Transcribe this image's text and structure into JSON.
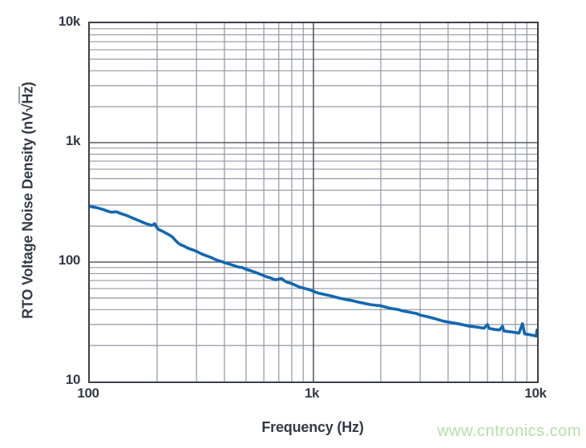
{
  "watermark": "www.cntronics.com",
  "colors": {
    "frame": "#3a4048",
    "grid_minor": "#9096a0",
    "grid_major": "#565c64",
    "text": "#333a46",
    "curve": "#1267b1",
    "watermark": "#b4dfa6"
  },
  "chart_data": {
    "type": "line",
    "title": "",
    "xlabel": "Frequency (Hz)",
    "ylabel": "RTO Voltage Noise Density (nV√Hz)",
    "ylabel_parts": {
      "prefix": "RTO Voltage Noise Density (nV",
      "radical": "√",
      "radicand": "Hz",
      "suffix": ")"
    },
    "x_scale": "log",
    "y_scale": "log",
    "xlim": [
      100,
      10000
    ],
    "ylim": [
      10,
      10000
    ],
    "grid": "log major + minor, full frame",
    "legend": "none",
    "x_ticks": [
      {
        "value": 100,
        "label": "100"
      },
      {
        "value": 1000,
        "label": "1k"
      },
      {
        "value": 10000,
        "label": "10k"
      }
    ],
    "y_ticks": [
      {
        "value": 10,
        "label": "10"
      },
      {
        "value": 100,
        "label": "100"
      },
      {
        "value": 1000,
        "label": "1k"
      },
      {
        "value": 10000,
        "label": "10k"
      }
    ],
    "series": [
      {
        "name": "RTO voltage noise density",
        "color": "#1267b1",
        "points": [
          [
            100,
            293
          ],
          [
            103,
            289
          ],
          [
            106,
            287
          ],
          [
            109,
            283
          ],
          [
            112,
            279
          ],
          [
            115,
            275
          ],
          [
            118,
            270
          ],
          [
            121,
            266
          ],
          [
            124,
            262
          ],
          [
            127,
            262
          ],
          [
            130,
            264
          ],
          [
            133,
            262
          ],
          [
            136,
            257
          ],
          [
            140,
            252
          ],
          [
            144,
            248
          ],
          [
            148,
            243
          ],
          [
            152,
            238
          ],
          [
            156,
            233
          ],
          [
            160,
            229
          ],
          [
            164,
            224
          ],
          [
            168,
            220
          ],
          [
            172,
            216
          ],
          [
            176,
            212
          ],
          [
            180,
            209
          ],
          [
            184,
            206
          ],
          [
            188,
            203
          ],
          [
            192,
            205
          ],
          [
            195,
            210
          ],
          [
            198,
            198
          ],
          [
            202,
            189
          ],
          [
            206,
            185
          ],
          [
            210,
            182
          ],
          [
            215,
            178
          ],
          [
            220,
            174
          ],
          [
            225,
            170
          ],
          [
            230,
            166
          ],
          [
            235,
            161
          ],
          [
            240,
            154
          ],
          [
            245,
            148
          ],
          [
            250,
            143
          ],
          [
            256,
            139
          ],
          [
            262,
            137
          ],
          [
            268,
            134
          ],
          [
            274,
            131
          ],
          [
            280,
            129
          ],
          [
            287,
            127
          ],
          [
            294,
            125
          ],
          [
            300,
            123
          ],
          [
            308,
            120
          ],
          [
            316,
            117
          ],
          [
            324,
            115
          ],
          [
            332,
            113
          ],
          [
            340,
            111
          ],
          [
            350,
            109
          ],
          [
            360,
            106
          ],
          [
            370,
            104
          ],
          [
            380,
            102
          ],
          [
            390,
            101
          ],
          [
            400,
            99
          ],
          [
            415,
            97
          ],
          [
            430,
            95
          ],
          [
            445,
            93
          ],
          [
            460,
            91
          ],
          [
            480,
            90
          ],
          [
            500,
            87
          ],
          [
            520,
            85
          ],
          [
            540,
            83
          ],
          [
            560,
            81
          ],
          [
            580,
            79
          ],
          [
            600,
            77
          ],
          [
            620,
            75
          ],
          [
            640,
            74
          ],
          [
            660,
            72
          ],
          [
            680,
            71
          ],
          [
            700,
            72
          ],
          [
            720,
            73
          ],
          [
            740,
            70
          ],
          [
            760,
            68
          ],
          [
            780,
            67
          ],
          [
            800,
            66
          ],
          [
            830,
            64
          ],
          [
            860,
            62
          ],
          [
            890,
            61
          ],
          [
            920,
            60
          ],
          [
            950,
            59
          ],
          [
            1000,
            57
          ],
          [
            1050,
            55
          ],
          [
            1100,
            54
          ],
          [
            1150,
            53
          ],
          [
            1200,
            52
          ],
          [
            1250,
            51
          ],
          [
            1300,
            50
          ],
          [
            1400,
            48.5
          ],
          [
            1500,
            47.5
          ],
          [
            1600,
            46
          ],
          [
            1700,
            45
          ],
          [
            1800,
            44
          ],
          [
            1900,
            43.5
          ],
          [
            2000,
            43
          ],
          [
            2100,
            42
          ],
          [
            2200,
            41
          ],
          [
            2300,
            40.5
          ],
          [
            2400,
            40
          ],
          [
            2500,
            39
          ],
          [
            2600,
            38.5
          ],
          [
            2700,
            38
          ],
          [
            2800,
            37.5
          ],
          [
            2900,
            37
          ],
          [
            3000,
            36
          ],
          [
            3100,
            35.5
          ],
          [
            3200,
            35
          ],
          [
            3400,
            34
          ],
          [
            3600,
            33
          ],
          [
            3800,
            32
          ],
          [
            4000,
            31.5
          ],
          [
            4200,
            31
          ],
          [
            4400,
            30.5
          ],
          [
            4600,
            30
          ],
          [
            4800,
            29.5
          ],
          [
            5000,
            29
          ],
          [
            5200,
            28.8
          ],
          [
            5400,
            28.5
          ],
          [
            5600,
            28.2
          ],
          [
            5800,
            28
          ],
          [
            6000,
            30
          ],
          [
            6100,
            27.8
          ],
          [
            6300,
            27.5
          ],
          [
            6500,
            27.2
          ],
          [
            6800,
            27
          ],
          [
            7000,
            29
          ],
          [
            7100,
            26.5
          ],
          [
            7400,
            26.2
          ],
          [
            7700,
            26
          ],
          [
            8000,
            25.7
          ],
          [
            8300,
            25.4
          ],
          [
            8600,
            30.5
          ],
          [
            8800,
            25
          ],
          [
            9100,
            24.8
          ],
          [
            9400,
            24.5
          ],
          [
            9700,
            24.2
          ],
          [
            9900,
            24
          ],
          [
            10000,
            27
          ]
        ]
      }
    ]
  }
}
